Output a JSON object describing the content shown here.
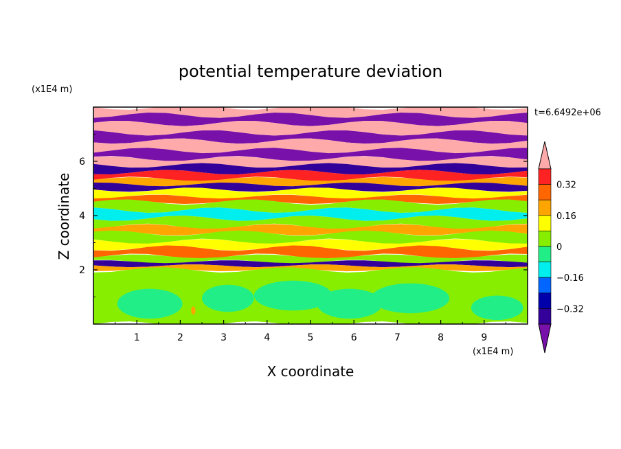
{
  "chart_data": {
    "type": "heatmap",
    "title": "potential temperature deviation",
    "xlabel": "X coordinate",
    "ylabel": "Z coordinate",
    "x_unit": "(x1E4 m)",
    "y_unit": "(x1E4 m)",
    "time_label": "t=6.6492e+06",
    "xlim": [
      0,
      10
    ],
    "ylim": [
      0,
      8
    ],
    "x_ticks": [
      "1",
      "2",
      "3",
      "4",
      "5",
      "6",
      "7",
      "8",
      "9"
    ],
    "y_ticks": [
      "2",
      "4",
      "6"
    ],
    "colorbar": {
      "levels": [
        -0.4,
        -0.32,
        -0.24,
        -0.16,
        -0.08,
        0,
        0.08,
        0.16,
        0.24,
        0.32,
        0.4
      ],
      "tick_labels": [
        "0.32",
        "0.16",
        "0",
        "−0.16",
        "−0.32"
      ],
      "colors": [
        "#ffaaaa",
        "#ff2222",
        "#ff6600",
        "#ffa500",
        "#ffff00",
        "#88ee00",
        "#22ee88",
        "#00eeee",
        "#0066ff",
        "#0000aa",
        "#330099",
        "#7711aa"
      ]
    },
    "bands": [
      {
        "z0": 7.7,
        "z1": 8.0,
        "value": 0.45
      },
      {
        "z0": 7.4,
        "z1": 7.7,
        "value": -0.45
      },
      {
        "z0": 7.05,
        "z1": 7.4,
        "value": 0.45
      },
      {
        "z0": 6.75,
        "z1": 7.05,
        "value": -0.45
      },
      {
        "z0": 6.4,
        "z1": 6.75,
        "value": 0.45
      },
      {
        "z0": 6.1,
        "z1": 6.4,
        "value": -0.45
      },
      {
        "z0": 5.85,
        "z1": 6.1,
        "value": 0.45
      },
      {
        "z0": 5.6,
        "z1": 5.85,
        "value": -0.36
      },
      {
        "z0": 5.35,
        "z1": 5.6,
        "value": 0.36
      },
      {
        "z0": 5.15,
        "z1": 5.35,
        "value": 0.2
      },
      {
        "z0": 4.95,
        "z1": 5.15,
        "value": -0.36
      },
      {
        "z0": 4.7,
        "z1": 4.95,
        "value": 0.12
      },
      {
        "z0": 4.5,
        "z1": 4.7,
        "value": 0.28
      },
      {
        "z0": 4.2,
        "z1": 4.5,
        "value": 0.05
      },
      {
        "z0": 3.9,
        "z1": 4.2,
        "value": -0.1
      },
      {
        "z0": 3.6,
        "z1": 3.9,
        "value": 0.05
      },
      {
        "z0": 3.35,
        "z1": 3.6,
        "value": 0.2
      },
      {
        "z0": 3.05,
        "z1": 3.35,
        "value": 0.05
      },
      {
        "z0": 2.8,
        "z1": 3.05,
        "value": 0.12
      },
      {
        "z0": 2.5,
        "z1": 2.8,
        "value": 0.28
      },
      {
        "z0": 2.3,
        "z1": 2.5,
        "value": 0.05
      },
      {
        "z0": 2.15,
        "z1": 2.3,
        "value": -0.36
      },
      {
        "z0": 2.0,
        "z1": 2.15,
        "value": 0.2
      },
      {
        "z0": 0.0,
        "z1": 2.0,
        "value": 0.05
      }
    ],
    "blobs": [
      {
        "x": 1.3,
        "z": 0.75,
        "rx": 0.75,
        "rz": 0.55,
        "value": -0.03
      },
      {
        "x": 3.1,
        "z": 0.95,
        "rx": 0.6,
        "rz": 0.5,
        "value": -0.03
      },
      {
        "x": 4.6,
        "z": 1.05,
        "rx": 0.9,
        "rz": 0.55,
        "value": -0.03
      },
      {
        "x": 5.9,
        "z": 0.75,
        "rx": 0.75,
        "rz": 0.55,
        "value": -0.03
      },
      {
        "x": 7.3,
        "z": 0.95,
        "rx": 0.9,
        "rz": 0.55,
        "value": -0.03
      },
      {
        "x": 9.3,
        "z": 0.6,
        "rx": 0.6,
        "rz": 0.45,
        "value": -0.03
      },
      {
        "x": 2.3,
        "z": 0.5,
        "rx": 0.05,
        "rz": 0.15,
        "value": 0.2
      }
    ]
  }
}
